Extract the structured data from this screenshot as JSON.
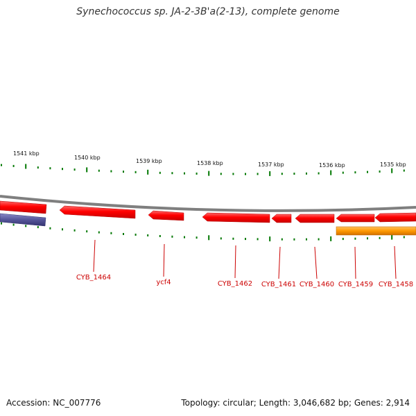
{
  "title": "Synechococcus sp. JA-2-3B'a(2-13), complete genome",
  "footer": {
    "accession": "Accession: NC_007776",
    "summary": "Topology: circular; Length: 3,046,682 bp; Genes: 2,914"
  },
  "colors": {
    "forward_gene": "#ff0000",
    "backbone": "#888888",
    "tick": "#007700",
    "label": "#cc0000",
    "purple_feature": "#555599",
    "orange_feature": "#ff9900"
  },
  "scale": {
    "tick_labels": [
      "1541 kbp",
      "1540 kbp",
      "1539 kbp",
      "1538 kbp",
      "1537 kbp",
      "1536 kbp",
      "1535 kbp"
    ]
  },
  "gene_labels": [
    "CYB_1464",
    "ycf4",
    "CYB_1462",
    "CYB_1461",
    "CYB_1460",
    "CYB_1459",
    "CYB_1458"
  ]
}
